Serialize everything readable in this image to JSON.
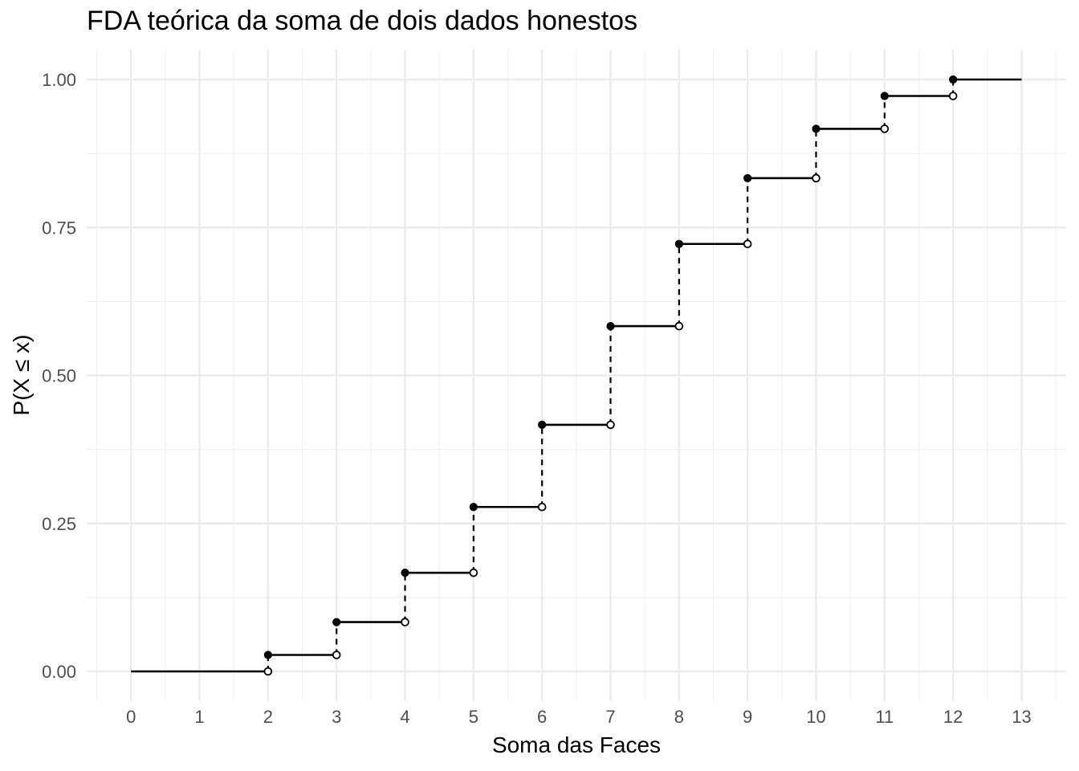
{
  "chart_data": {
    "type": "step",
    "title": "FDA teórica da soma de dois dados honestos",
    "xlabel": "Soma das Faces",
    "ylabel": "P(X ≤ x)",
    "x": [
      2,
      3,
      4,
      5,
      6,
      7,
      8,
      9,
      10,
      11,
      12
    ],
    "cdf": [
      0.0278,
      0.0833,
      0.1667,
      0.2778,
      0.4167,
      0.5833,
      0.7222,
      0.8333,
      0.9167,
      0.9722,
      1.0
    ],
    "xlim": [
      0,
      13
    ],
    "ylim": [
      0,
      1
    ],
    "x_ticks": [
      0,
      1,
      2,
      3,
      4,
      5,
      6,
      7,
      8,
      9,
      10,
      11,
      12,
      13
    ],
    "x_tick_labels": [
      "0",
      "1",
      "2",
      "3",
      "4",
      "5",
      "6",
      "7",
      "8",
      "9",
      "10",
      "11",
      "12",
      "13"
    ],
    "y_ticks": [
      0,
      0.25,
      0.5,
      0.75,
      1
    ],
    "y_tick_labels": [
      "0.00",
      "0.25",
      "0.50",
      "0.75",
      "1.00"
    ],
    "grid": "major-and-minor",
    "legend_position": "none",
    "colors": {
      "line": "#000000",
      "point_fill": "#000000",
      "open_point_fill": "#ffffff",
      "grid_major": "#ebebeb",
      "grid_minor": "#f0f0f0",
      "tick_label": "#4d4d4d",
      "title": "#000000",
      "background": "#ffffff"
    }
  }
}
